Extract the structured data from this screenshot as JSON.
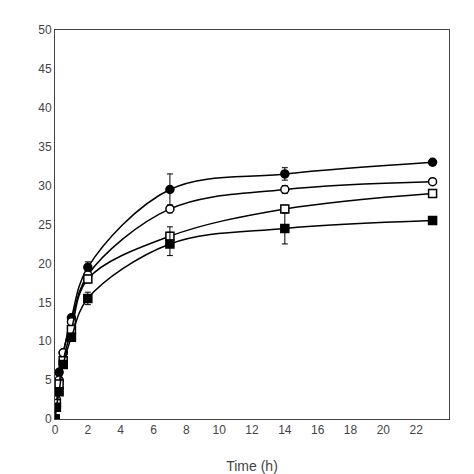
{
  "chart_data": {
    "type": "line",
    "xlabel": "Time (h)",
    "x": [
      0,
      0.083,
      0.25,
      0.5,
      1,
      2,
      7,
      14,
      23
    ],
    "series": [
      {
        "marker": "circle",
        "color": "black",
        "line_style": "solid",
        "values": [
          0,
          3.5,
          6.0,
          8.5,
          13.0,
          19.5,
          29.5,
          31.5,
          33.0
        ],
        "yerr": [
          0,
          0,
          0,
          0,
          0,
          0.7,
          2.0,
          0.8,
          0
        ]
      },
      {
        "marker": "circle-open",
        "color": "black",
        "line_style": "solid",
        "values": [
          0,
          2.5,
          5.0,
          8.5,
          12.5,
          18.5,
          27.0,
          29.5,
          30.5
        ],
        "yerr": [
          0,
          0,
          0,
          0,
          0,
          0.5,
          0.5,
          0.5,
          0
        ]
      },
      {
        "marker": "square-open",
        "color": "black",
        "line_style": "solid",
        "values": [
          0,
          2.0,
          4.5,
          7.5,
          11.5,
          18.0,
          23.5,
          27.0,
          29.0
        ],
        "yerr": [
          0,
          0,
          0,
          0,
          0,
          0.5,
          1.2,
          0.5,
          0
        ]
      },
      {
        "marker": "square",
        "color": "black",
        "line_style": "solid",
        "values": [
          0,
          1.5,
          3.5,
          7.0,
          10.5,
          15.5,
          22.5,
          24.5,
          25.5
        ],
        "yerr": [
          0,
          0,
          0,
          0,
          0,
          0.8,
          1.5,
          2.0,
          0
        ]
      }
    ],
    "xlim": [
      0,
      24
    ],
    "xticks": [
      0,
      2,
      4,
      6,
      8,
      10,
      12,
      14,
      16,
      18,
      20,
      22
    ],
    "ylim": [
      0,
      50
    ],
    "yticks": [
      0,
      5,
      10,
      15,
      20,
      25,
      30,
      35,
      40,
      45,
      50
    ],
    "grid": false
  }
}
